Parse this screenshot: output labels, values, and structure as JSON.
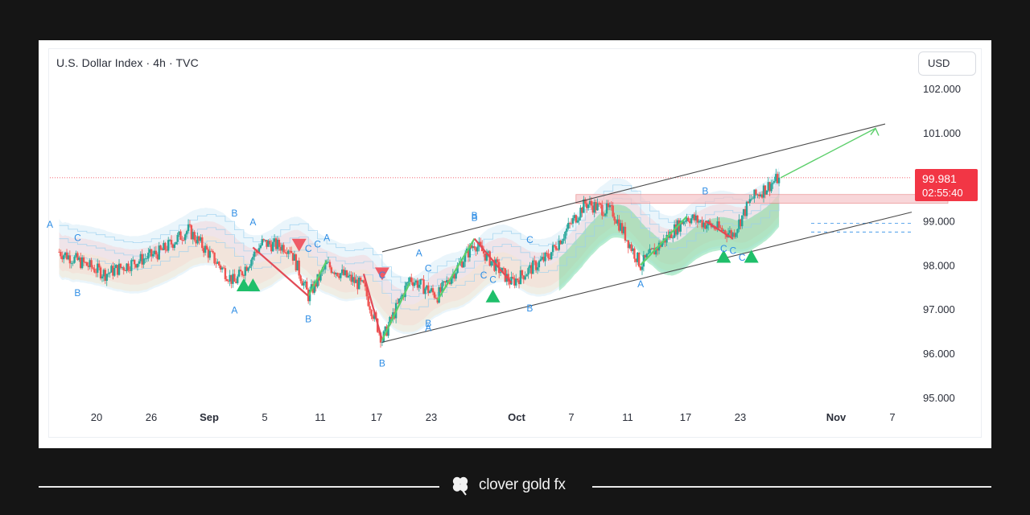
{
  "chart": {
    "title": "U.S. Dollar Index · 4h · TVC",
    "currency": "USD",
    "last_price": "99.981",
    "countdown": "02:55:40"
  },
  "colors": {
    "up": "#26a69a",
    "down": "#ef5350",
    "wave_label": "#2f8ee5",
    "price_tag": "#f23645",
    "channel": "#4a4a4a",
    "bull_arrow": "#5ccf6b",
    "bear_arrow": "#e24a56"
  },
  "chart_data": {
    "type": "candlestick",
    "title": "U.S. Dollar Index · 4h · TVC",
    "xlabel": "",
    "ylabel": "",
    "ylim": [
      94.5,
      102.5
    ],
    "y_ticks": [
      "102.000",
      "101.000",
      "99.000",
      "98.000",
      "97.000",
      "96.000",
      "95.000"
    ],
    "x_ticks": [
      "20",
      "26",
      "Sep",
      "5",
      "11",
      "17",
      "23",
      "Oct",
      "7",
      "11",
      "17",
      "23",
      "Nov",
      "7"
    ],
    "last_price": 99.981,
    "grid": false,
    "approx_path": [
      {
        "date": "Aug 15",
        "close": 98.3
      },
      {
        "date": "Aug 20",
        "close": 97.8
      },
      {
        "date": "Aug 26",
        "close": 98.3
      },
      {
        "date": "Aug 29",
        "close": 98.8
      },
      {
        "date": "Sep 3",
        "close": 97.6
      },
      {
        "date": "Sep 6",
        "close": 98.5
      },
      {
        "date": "Sep 9",
        "close": 98.4
      },
      {
        "date": "Sep 11",
        "close": 97.3
      },
      {
        "date": "Sep 13",
        "close": 98.0
      },
      {
        "date": "Sep 17",
        "close": 97.5
      },
      {
        "date": "Sep 19",
        "close": 96.3
      },
      {
        "date": "Sep 22",
        "close": 97.7
      },
      {
        "date": "Sep 25",
        "close": 97.3
      },
      {
        "date": "Sep 29",
        "close": 98.5
      },
      {
        "date": "Oct 3",
        "close": 97.6
      },
      {
        "date": "Oct 7",
        "close": 98.2
      },
      {
        "date": "Oct 11",
        "close": 99.4
      },
      {
        "date": "Oct 14",
        "close": 99.2
      },
      {
        "date": "Oct 17",
        "close": 98.0
      },
      {
        "date": "Oct 22",
        "close": 99.1
      },
      {
        "date": "Oct 27",
        "close": 98.7
      },
      {
        "date": "Oct 29",
        "close": 99.5
      },
      {
        "date": "Nov 1",
        "close": 99.981
      }
    ],
    "projection": {
      "from": 99.981,
      "to": 101.1
    },
    "resistance_zone": [
      99.4,
      99.6
    ],
    "wave_labels": [
      "A",
      "C",
      "B",
      "B",
      "A",
      "A",
      "B",
      "A",
      "C",
      "C",
      "C",
      "B",
      "A",
      "C",
      "B",
      "B",
      "A",
      "B",
      "C",
      "C",
      "C",
      "B",
      "C",
      "A",
      "B",
      "C",
      "C"
    ]
  }
}
